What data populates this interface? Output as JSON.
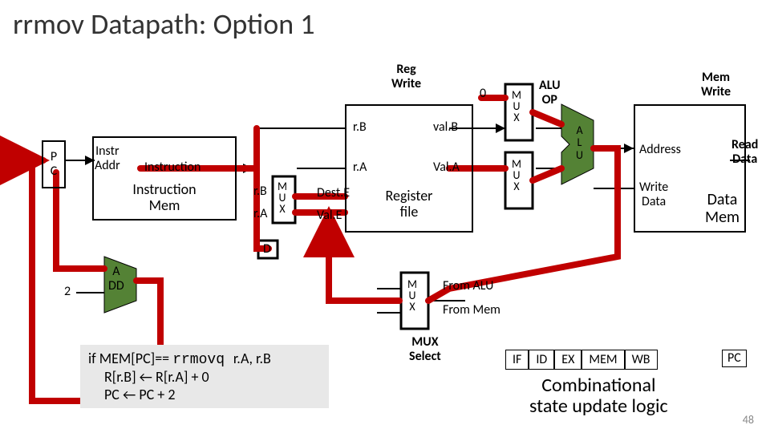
{
  "title": "rrmov Datapath: Option 1",
  "blocks": {
    "pc": "P\nC",
    "instr_addr": "Instr\nAddr",
    "instruction_label": "Instruction",
    "instruction_mem": "Instruction\nMem",
    "add": "A\nDD",
    "reg_write": "Reg\nWrite",
    "rB": "r.B",
    "rA": "r.A",
    "valB": "val.B",
    "valA": "Val.A",
    "destE": "Dest.E",
    "valE": "Val.E",
    "register_file": "Register\nfile",
    "zero": "0",
    "alu_op": "ALU\nOP",
    "alu": "A\nL\nU",
    "address": "Address",
    "write_data": "Write\nData",
    "read_data": "Read\nData",
    "data_mem": "Data\nMem",
    "mem_write": "Mem\nWrite",
    "from_alu": "From ALU",
    "from_mem": "From Mem",
    "mux_select": "MUX\nSelect",
    "two": "2",
    "d": "D",
    "mux": "M\nU\nX",
    "rB2": "r.B",
    "rA2": "r.A"
  },
  "pseudocode": {
    "line1_a": "if MEM[PC]== ",
    "line1_b": "rrmovq ",
    "line1_c": "r.A, r.B",
    "line2": "R[r.B] ← R[r.A] + 0",
    "line3": "PC ← PC + 2"
  },
  "stages": [
    "IF",
    "ID",
    "EX",
    "MEM",
    "WB"
  ],
  "pc_stage": "PC",
  "combinational": "Combinational\nstate update logic",
  "slide_num": "48",
  "colors": {
    "highlight": "#c00000",
    "green": "#548235",
    "black": "#000000"
  }
}
